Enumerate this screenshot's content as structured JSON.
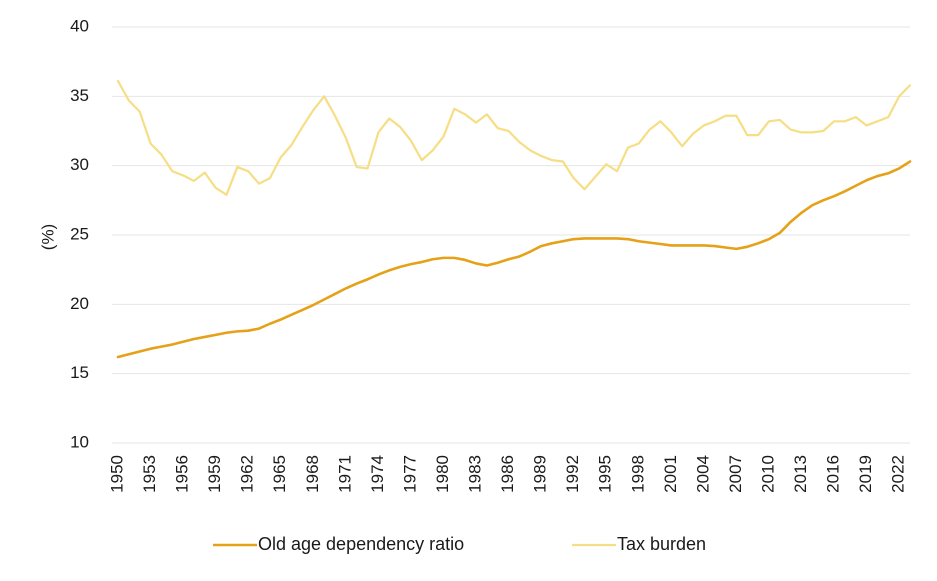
{
  "chart_data": {
    "type": "line",
    "title": "",
    "xlabel": "",
    "ylabel": "(%)",
    "ylim": [
      10,
      40
    ],
    "yticks": [
      10,
      15,
      20,
      25,
      30,
      35,
      40
    ],
    "xlim": [
      1950,
      2023
    ],
    "xticks": [
      1950,
      1953,
      1956,
      1959,
      1962,
      1965,
      1968,
      1971,
      1974,
      1977,
      1980,
      1983,
      1986,
      1989,
      1992,
      1995,
      1998,
      2001,
      2004,
      2007,
      2010,
      2013,
      2016,
      2019,
      2022
    ],
    "grid": true,
    "legend_position": "bottom",
    "x": [
      1950,
      1951,
      1952,
      1953,
      1954,
      1955,
      1956,
      1957,
      1958,
      1959,
      1960,
      1961,
      1962,
      1963,
      1964,
      1965,
      1966,
      1967,
      1968,
      1969,
      1970,
      1971,
      1972,
      1973,
      1974,
      1975,
      1976,
      1977,
      1978,
      1979,
      1980,
      1981,
      1982,
      1983,
      1984,
      1985,
      1986,
      1987,
      1988,
      1989,
      1990,
      1991,
      1992,
      1993,
      1994,
      1995,
      1996,
      1997,
      1998,
      1999,
      2000,
      2001,
      2002,
      2003,
      2004,
      2005,
      2006,
      2007,
      2008,
      2009,
      2010,
      2011,
      2012,
      2013,
      2014,
      2015,
      2016,
      2017,
      2018,
      2019,
      2020,
      2021,
      2022,
      2023
    ],
    "series": [
      {
        "name": "Old age dependency ratio",
        "color": "#E5A117",
        "values": [
          16.2,
          16.4,
          16.6,
          16.8,
          16.95,
          17.1,
          17.3,
          17.5,
          17.65,
          17.8,
          17.95,
          18.05,
          18.1,
          18.25,
          18.6,
          18.9,
          19.25,
          19.6,
          19.95,
          20.35,
          20.75,
          21.15,
          21.5,
          21.8,
          22.15,
          22.45,
          22.7,
          22.9,
          23.05,
          23.25,
          23.35,
          23.35,
          23.2,
          22.95,
          22.8,
          23.0,
          23.25,
          23.45,
          23.8,
          24.2,
          24.4,
          24.55,
          24.7,
          24.75,
          24.75,
          24.75,
          24.75,
          24.7,
          24.55,
          24.45,
          24.35,
          24.25,
          24.25,
          24.25,
          24.25,
          24.2,
          24.1,
          24.0,
          24.15,
          24.4,
          24.7,
          25.15,
          25.95,
          26.6,
          27.15,
          27.5,
          27.8,
          28.15,
          28.55,
          28.95,
          29.25,
          29.45,
          29.8,
          30.3
        ]
      },
      {
        "name": "Tax burden",
        "color": "#F5DE84",
        "values": [
          36.1,
          34.7,
          33.9,
          31.6,
          30.8,
          29.6,
          29.3,
          28.9,
          29.5,
          28.4,
          27.9,
          29.9,
          29.6,
          28.7,
          29.1,
          30.6,
          31.5,
          32.8,
          34.0,
          35.0,
          33.6,
          32.0,
          29.9,
          29.8,
          32.4,
          33.4,
          32.8,
          31.8,
          30.4,
          31.1,
          32.1,
          34.1,
          33.7,
          33.1,
          33.7,
          32.7,
          32.5,
          31.7,
          31.1,
          30.7,
          30.4,
          30.3,
          29.1,
          28.3,
          29.2,
          30.1,
          29.6,
          31.3,
          31.6,
          32.6,
          33.2,
          32.4,
          31.4,
          32.3,
          32.9,
          33.2,
          33.6,
          33.6,
          32.2,
          32.2,
          33.2,
          33.3,
          32.6,
          32.4,
          32.4,
          32.5,
          33.2,
          33.2,
          33.5,
          32.9,
          33.2,
          33.5,
          35.0,
          35.8
        ]
      }
    ]
  }
}
